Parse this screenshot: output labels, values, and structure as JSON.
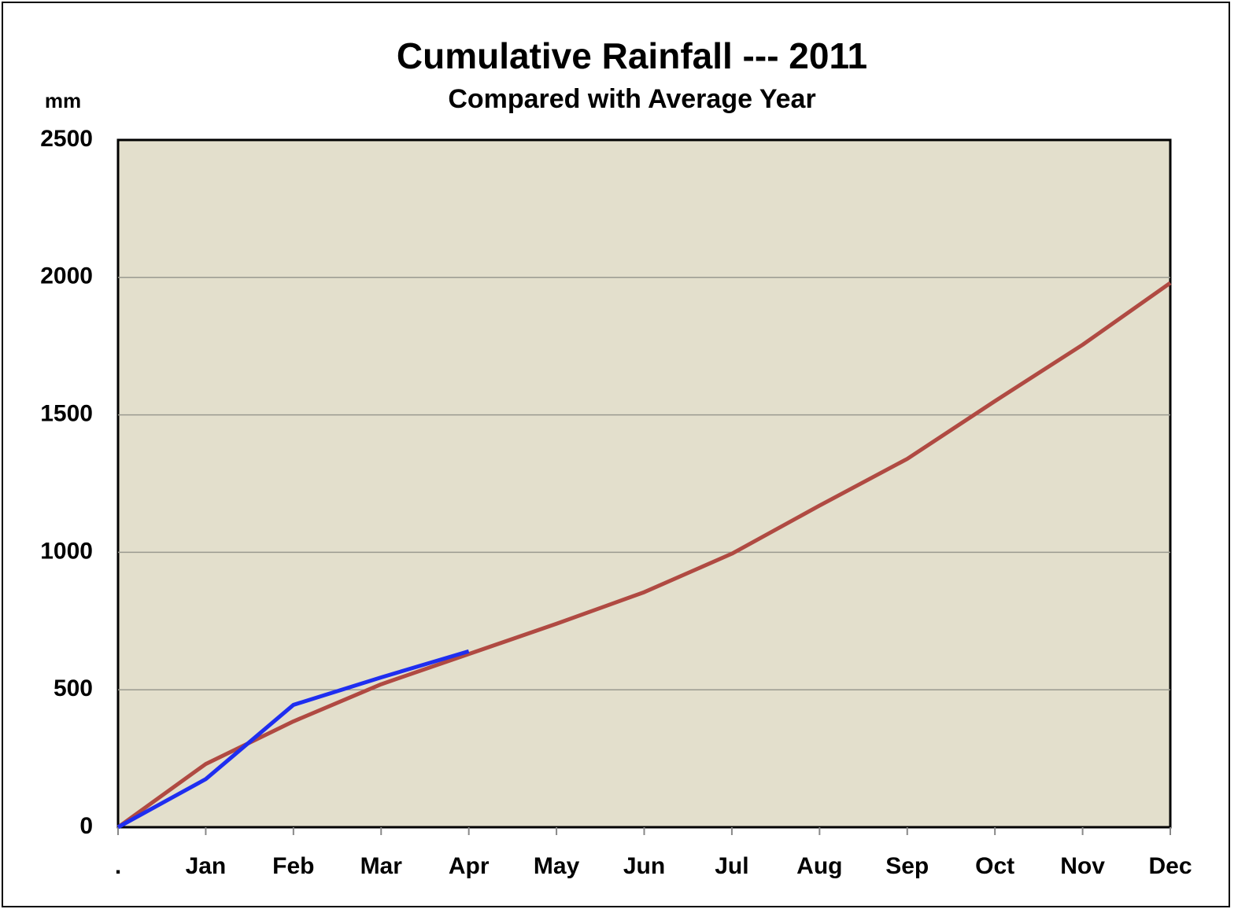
{
  "chart_data": {
    "type": "line",
    "title": "Cumulative Rainfall --- 2011",
    "subtitle": "Compared with Average Year",
    "y_label": "mm",
    "categories": [
      ".",
      "Jan",
      "Feb",
      "Mar",
      "Apr",
      "May",
      "Jun",
      "Jul",
      "Aug",
      "Sep",
      "Oct",
      "Nov",
      "Dec"
    ],
    "series": [
      {
        "color": "#b04a42",
        "values": [
          0,
          230,
          385,
          520,
          630,
          740,
          855,
          995,
          1170,
          1340,
          1550,
          1755,
          1980
        ]
      },
      {
        "color": "#1f2ef0",
        "values": [
          0,
          175,
          445,
          545,
          640,
          null,
          null,
          null,
          null,
          null,
          null,
          null,
          null
        ]
      }
    ],
    "ylim": [
      0,
      2500
    ],
    "yticks": [
      0,
      500,
      1000,
      1500,
      2000,
      2500
    ],
    "grid": true,
    "plot_background": "#e3dfcc"
  }
}
